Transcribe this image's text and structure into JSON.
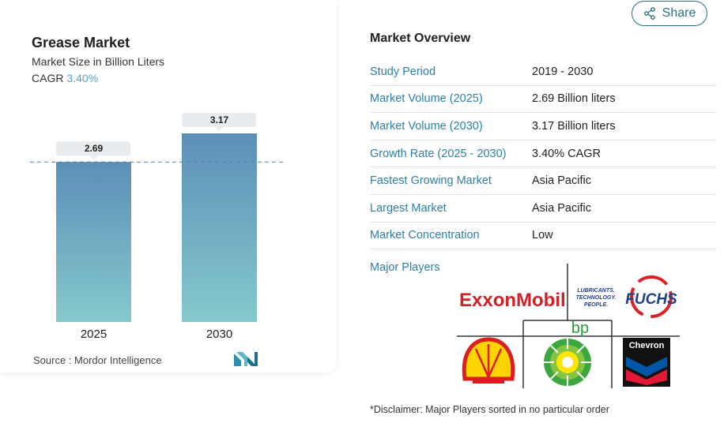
{
  "share": {
    "label": "Share",
    "icon": "share-icon"
  },
  "chart_data": {
    "type": "bar",
    "title": "Grease Market",
    "subtitle": "Market Size in Billion Liters",
    "cagr_label": "CAGR",
    "cagr_value": "3.40%",
    "categories": [
      "2025",
      "2030"
    ],
    "values": [
      2.69,
      3.17
    ],
    "value_labels": [
      "2.69",
      "3.17"
    ],
    "bar_colors": {
      "top": "#5b8fb8",
      "bottom": "#86c9cc"
    },
    "reference_line": 2.69
  },
  "source": {
    "text": "Source :  Mordor Intelligence"
  },
  "overview": {
    "title": "Market Overview",
    "rows": [
      {
        "label": "Study Period",
        "value": "2019 - 2030"
      },
      {
        "label": "Market Volume (2025)",
        "value": "2.69 Billion liters"
      },
      {
        "label": "Market Volume (2030)",
        "value": "3.17 Billion liters"
      },
      {
        "label": "Growth Rate (2025 - 2030)",
        "value": "3.40% CAGR"
      },
      {
        "label": "Fastest Growing Market",
        "value": "Asia Pacific"
      },
      {
        "label": "Largest Market",
        "value": "Asia Pacific"
      },
      {
        "label": "Market Concentration",
        "value": "Low"
      }
    ],
    "players_label": "Major Players",
    "players": [
      "ExxonMobil",
      "FUCHS",
      "bp",
      "Shell",
      "Chevron"
    ],
    "fuchs_tagline": [
      "LUBRICANTS.",
      "TECHNOLOGY.",
      "PEOPLE."
    ]
  },
  "disclaimer": "*Disclaimer: Major Players sorted in no particular order"
}
